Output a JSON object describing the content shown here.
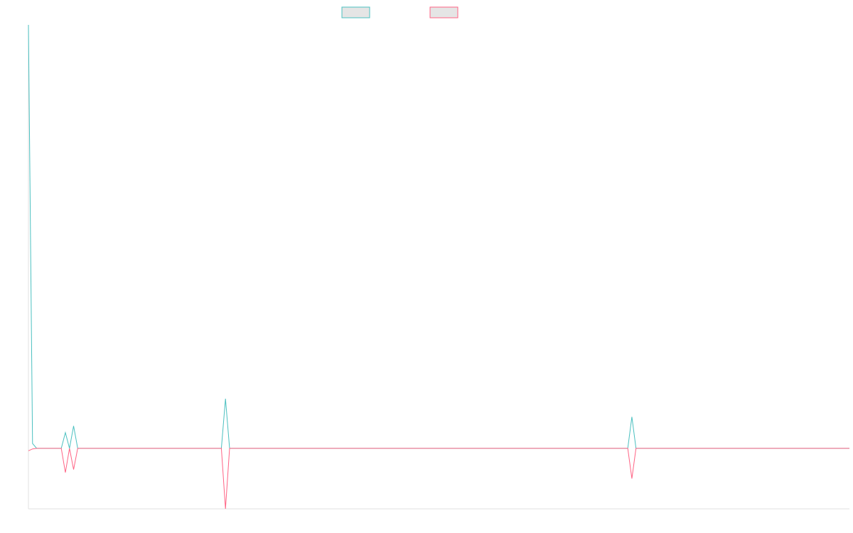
{
  "chart_data": {
    "type": "line",
    "x": [
      0,
      1,
      2,
      8,
      9,
      10,
      11,
      12,
      47,
      48,
      49,
      146,
      147,
      148,
      200
    ],
    "xlim": [
      0,
      200
    ],
    "ylim": [
      -100,
      700
    ],
    "series": [
      {
        "color": "#4bc0c0",
        "values": [
          700,
          8,
          0,
          0,
          26,
          0,
          37,
          0,
          0,
          82,
          0,
          0,
          52,
          0,
          0
        ]
      },
      {
        "color": "#ff6384",
        "values": [
          -4,
          -1,
          0,
          0,
          -40,
          0,
          -35,
          0,
          0,
          -100,
          0,
          0,
          -50,
          0,
          0
        ]
      }
    ]
  }
}
